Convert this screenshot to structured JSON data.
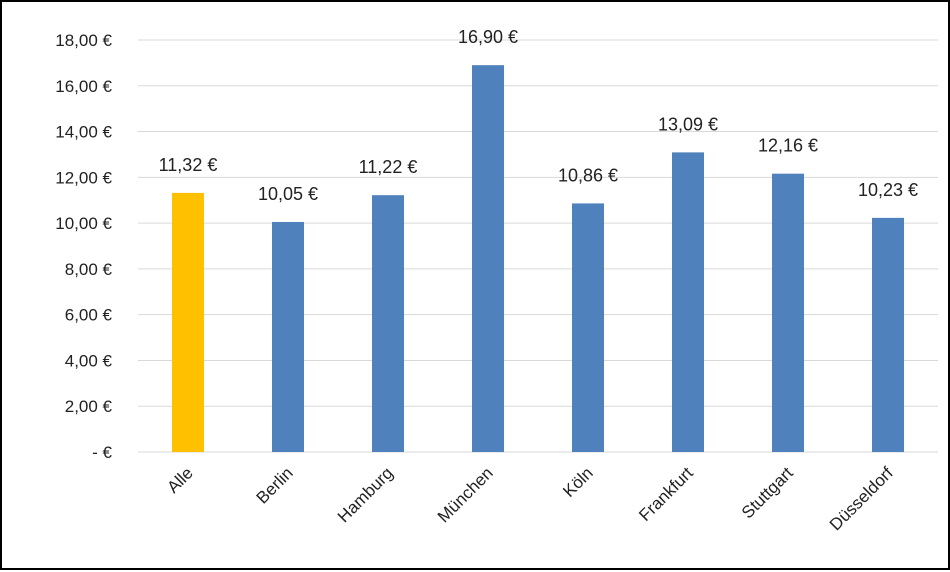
{
  "chart_data": {
    "type": "bar",
    "categories": [
      "Alle",
      "Berlin",
      "Hamburg",
      "München",
      "Köln",
      "Frankfurt",
      "Stuttgart",
      "Düsseldorf"
    ],
    "values": [
      11.32,
      10.05,
      11.22,
      16.9,
      10.86,
      13.09,
      12.16,
      10.23
    ],
    "value_labels": [
      "11,32 €",
      "10,05 €",
      "11,22 €",
      "16,90 €",
      "10,86 €",
      "13,09 €",
      "12,16 €",
      "10,23 €"
    ],
    "y_ticks": [
      0,
      2,
      4,
      6,
      8,
      10,
      12,
      14,
      16,
      18
    ],
    "y_tick_labels": [
      "-  €",
      "2,00 €",
      "4,00 €",
      "6,00 €",
      "8,00 €",
      "10,00 €",
      "12,00 €",
      "14,00 €",
      "16,00 €",
      "18,00 €"
    ],
    "ylim": [
      0,
      18
    ],
    "grid": true,
    "legend": "none",
    "colors": {
      "highlight": "#FFC000",
      "bar": "#4F81BD"
    },
    "highlight_index": 0
  }
}
